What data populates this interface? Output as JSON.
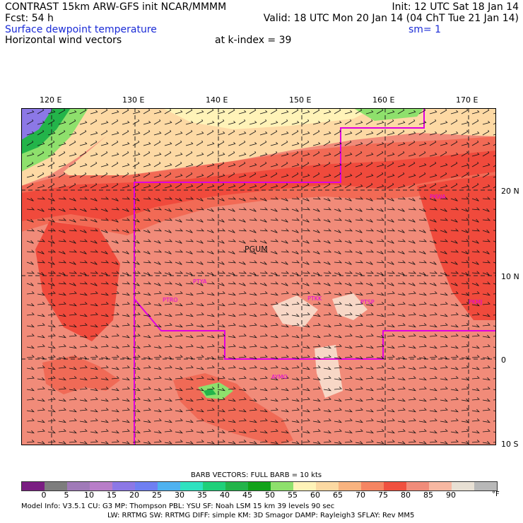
{
  "header": {
    "line1_left": "CONTRAST 15km ARW-GFS init   NCAR/MMMM",
    "line1_right": "Init: 12 UTC Sat 18 Jan 14",
    "line2_left": "Fcst:    54 h",
    "line2_right": "Valid: 18 UTC Mon 20 Jan 14 (04 ChT Tue 21 Jan 14)",
    "field1": "Surface dewpoint temperature",
    "smoothing": "sm= 1",
    "field2": "Horizontal wind vectors",
    "kindex": "at k-index =   39"
  },
  "longitude_labels": [
    "120 E",
    "130 E",
    "140 E",
    "150 E",
    "160 E",
    "170 E"
  ],
  "latitude_labels": [
    "20 N",
    "10 N",
    "0",
    "10 S"
  ],
  "map": {
    "region_label": "PGUM",
    "stations": [
      "PTYA",
      "PTRO",
      "PTKK",
      "PTSP",
      "PKMJ",
      "PKWA",
      "AYMO"
    ]
  },
  "colorbar": {
    "title": "BARB VECTORS:  FULL BARB = 10 kts",
    "unit": "°F",
    "ticks": [
      "0",
      "5",
      "10",
      "15",
      "20",
      "25",
      "30",
      "35",
      "40",
      "45",
      "50",
      "55",
      "60",
      "65",
      "70",
      "75",
      "80",
      "85",
      "90"
    ],
    "colors": [
      "#7a1e82",
      "#7d7d7d",
      "#a07ab8",
      "#b87dc8",
      "#8c78e6",
      "#6f7ff2",
      "#4fb2f0",
      "#2fe2c0",
      "#1fd07a",
      "#23b44a",
      "#12a21a",
      "#8ee06c",
      "#fff3b8",
      "#fcd9a2",
      "#f8b37f",
      "#f58562",
      "#f0503f",
      "#f08c7a",
      "#f7b8a2",
      "#e8e0d4",
      "#b8b8b8"
    ]
  },
  "footer": {
    "line1": "Model Info: V3.5.1     CU: G3       MP: Thompson     PBL: YSU       SF: Noah LSM      15 km    39 levels   90 sec",
    "line2": "LW: RRTMG    SW: RRTMG  DIFF: simple KM: 3D Smagor DAMP: Rayleigh3  SFLAY: Rev MM5"
  }
}
